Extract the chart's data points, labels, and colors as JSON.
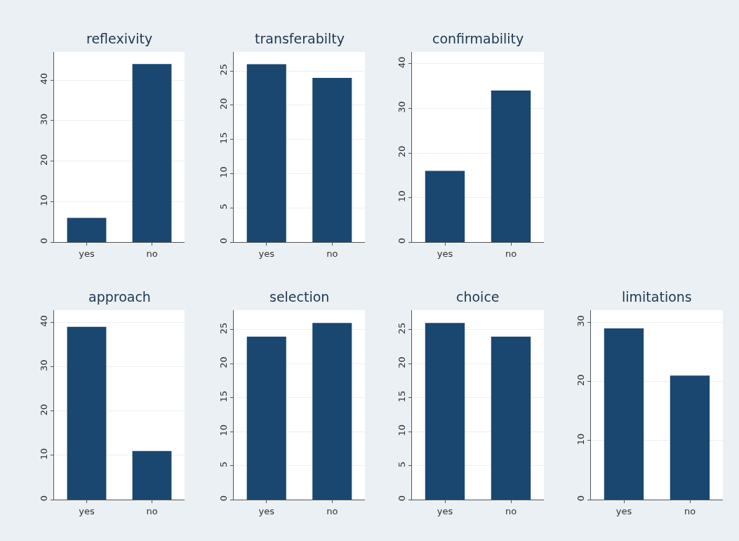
{
  "chart_data": [
    {
      "type": "bar",
      "title": "reflexivity",
      "categories": [
        "yes",
        "no"
      ],
      "values": [
        6,
        44
      ],
      "color": "#1a476f",
      "ylim": [
        0,
        47
      ],
      "yticks": [
        0,
        10,
        20,
        30,
        40
      ],
      "grid": "y"
    },
    {
      "type": "bar",
      "title": "transferabilty",
      "categories": [
        "yes",
        "no"
      ],
      "values": [
        26,
        24
      ],
      "color": "#1a476f",
      "ylim": [
        0,
        27.8
      ],
      "yticks": [
        0,
        5,
        10,
        15,
        20,
        25
      ],
      "grid": "y"
    },
    {
      "type": "bar",
      "title": "confirmability",
      "categories": [
        "yes",
        "no"
      ],
      "values": [
        16,
        34
      ],
      "color": "#1a476f",
      "ylim": [
        0,
        42.7
      ],
      "yticks": [
        0,
        10,
        20,
        30,
        40
      ],
      "grid": "y"
    },
    {
      "type": "bar",
      "title": "approach",
      "categories": [
        "yes",
        "no"
      ],
      "values": [
        39,
        11
      ],
      "color": "#1a476f",
      "ylim": [
        0,
        42.8
      ],
      "yticks": [
        0,
        10,
        20,
        30,
        40
      ],
      "grid": "y"
    },
    {
      "type": "bar",
      "title": "selection",
      "categories": [
        "yes",
        "no"
      ],
      "values": [
        24,
        26
      ],
      "color": "#1a476f",
      "ylim": [
        0,
        27.9
      ],
      "yticks": [
        0,
        5,
        10,
        15,
        20,
        25
      ],
      "grid": "y"
    },
    {
      "type": "bar",
      "title": "choice",
      "categories": [
        "yes",
        "no"
      ],
      "values": [
        26,
        24
      ],
      "color": "#1a476f",
      "ylim": [
        0,
        27.9
      ],
      "yticks": [
        0,
        5,
        10,
        15,
        20,
        25
      ],
      "grid": "y"
    },
    {
      "type": "bar",
      "title": "limitations",
      "categories": [
        "yes",
        "no"
      ],
      "values": [
        29,
        21
      ],
      "color": "#1a476f",
      "ylim": [
        0,
        32.1
      ],
      "yticks": [
        0,
        10,
        20,
        30
      ],
      "grid": "y"
    }
  ]
}
